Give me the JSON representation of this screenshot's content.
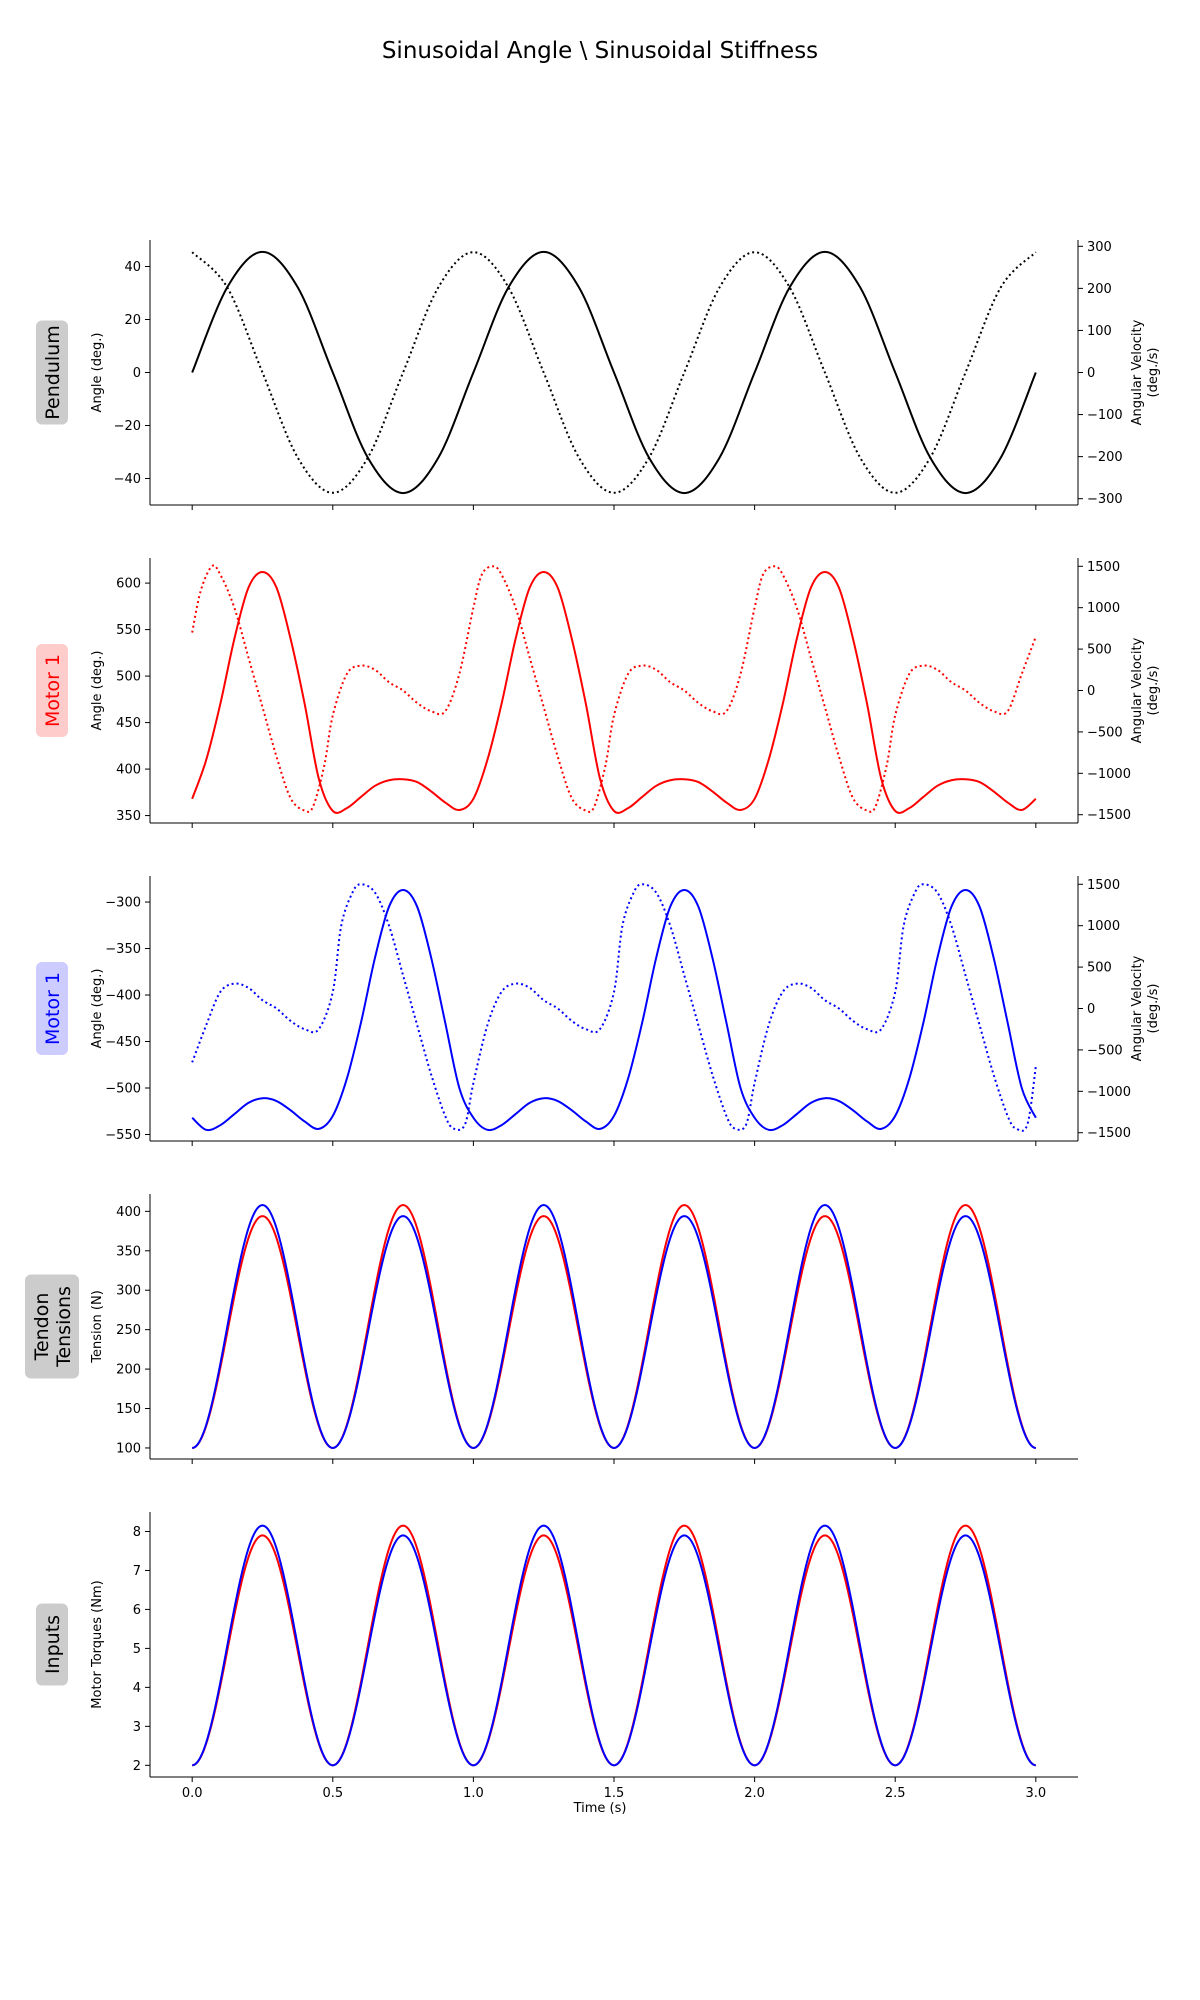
{
  "figure": {
    "title": "Sinusoidal Angle \\ Sinusoidal Stiffness",
    "xlabel": "Time (s)"
  },
  "chart_data": [
    {
      "type": "line",
      "row_label": "Pendulum",
      "label_bg": "#cccccc",
      "label_color": "#000000",
      "ylabel": "Angle (deg.)",
      "ylabel_right": [
        "Angular Velocity",
        "(deg./s)"
      ],
      "ylim": [
        -50,
        50
      ],
      "yticks": [
        -40,
        -20,
        0,
        20,
        40
      ],
      "y2lim": [
        -315,
        315
      ],
      "y2ticks": [
        -300,
        -200,
        -100,
        0,
        100,
        200,
        300
      ],
      "xlim": [
        -0.15,
        3.15
      ],
      "xticks": [
        0.0,
        0.5,
        1.0,
        1.5,
        2.0,
        2.5,
        3.0
      ],
      "series": [
        {
          "color": "#000000",
          "dash": "solid",
          "axis": "left",
          "x": [
            0.0,
            0.125,
            0.25,
            0.375,
            0.5,
            0.625,
            0.75,
            0.875,
            1.0,
            1.125,
            1.25,
            1.375,
            1.5,
            1.625,
            1.75,
            1.875,
            2.0,
            2.125,
            2.25,
            2.375,
            2.5,
            2.625,
            2.75,
            2.875,
            3.0
          ],
          "y": [
            0,
            32.2,
            45.5,
            32.2,
            0,
            -32.2,
            -45.5,
            -32.2,
            0,
            32.2,
            45.5,
            32.2,
            0,
            -32.2,
            -45.5,
            -32.2,
            0,
            32.2,
            45.5,
            32.2,
            0,
            -32.2,
            -45.5,
            -32.2,
            0
          ]
        },
        {
          "color": "#000000",
          "dash": "dotted",
          "axis": "right",
          "x": [
            0.0,
            0.125,
            0.25,
            0.375,
            0.5,
            0.625,
            0.75,
            0.875,
            1.0,
            1.125,
            1.25,
            1.375,
            1.5,
            1.625,
            1.75,
            1.875,
            2.0,
            2.125,
            2.25,
            2.375,
            2.5,
            2.625,
            2.75,
            2.875,
            3.0
          ],
          "y": [
            286,
            202,
            0,
            -202,
            -286,
            -202,
            0,
            202,
            286,
            202,
            0,
            -202,
            -286,
            -202,
            0,
            202,
            286,
            202,
            0,
            -202,
            -286,
            -202,
            0,
            202,
            286
          ]
        }
      ]
    },
    {
      "type": "line",
      "row_label": "Motor 1",
      "label_bg": "#ffcccc",
      "label_color": "#ff0000",
      "ylabel": "Angle (deg.)",
      "ylabel_right": [
        "Angular Velocity",
        "(deg./s)"
      ],
      "ylim": [
        342,
        627
      ],
      "yticks": [
        350,
        400,
        450,
        500,
        550,
        600
      ],
      "y2lim": [
        -1600,
        1600
      ],
      "y2ticks": [
        -1500,
        -1000,
        -500,
        0,
        500,
        1000,
        1500
      ],
      "xlim": [
        -0.15,
        3.15
      ],
      "xticks": [
        0.0,
        0.5,
        1.0,
        1.5,
        2.0,
        2.5,
        3.0
      ],
      "series": [
        {
          "color": "#ff0000",
          "dash": "solid",
          "axis": "left",
          "x": [
            0.0,
            0.05,
            0.1,
            0.15,
            0.2,
            0.25,
            0.3,
            0.35,
            0.4,
            0.45,
            0.5,
            0.55,
            0.6,
            0.65,
            0.7,
            0.75,
            0.8,
            0.85,
            0.9,
            0.95,
            1.0,
            1.05,
            1.1,
            1.15,
            1.2,
            1.25,
            1.3,
            1.35,
            1.4,
            1.45,
            1.5,
            1.55,
            1.6,
            1.65,
            1.7,
            1.75,
            1.8,
            1.85,
            1.9,
            1.95,
            2.0,
            2.05,
            2.1,
            2.15,
            2.2,
            2.25,
            2.3,
            2.35,
            2.4,
            2.45,
            2.5,
            2.55,
            2.6,
            2.65,
            2.7,
            2.75,
            2.8,
            2.85,
            2.9,
            2.95,
            3.0
          ],
          "y": [
            368,
            410,
            470,
            540,
            595,
            612,
            595,
            540,
            470,
            390,
            355,
            358,
            370,
            382,
            388,
            389,
            386,
            376,
            364,
            356,
            368,
            410,
            470,
            540,
            595,
            612,
            595,
            540,
            470,
            390,
            355,
            358,
            370,
            382,
            388,
            389,
            386,
            376,
            364,
            356,
            368,
            410,
            470,
            540,
            595,
            612,
            595,
            540,
            470,
            390,
            355,
            358,
            370,
            382,
            388,
            389,
            386,
            376,
            364,
            356,
            368
          ]
        },
        {
          "color": "#ff0000",
          "dash": "dotted",
          "axis": "right",
          "x": [
            0.0,
            0.03,
            0.07,
            0.1,
            0.15,
            0.2,
            0.25,
            0.3,
            0.35,
            0.4,
            0.43,
            0.47,
            0.5,
            0.55,
            0.6,
            0.65,
            0.7,
            0.75,
            0.8,
            0.85,
            0.9,
            0.95,
            1.0,
            1.03,
            1.07,
            1.1,
            1.15,
            1.2,
            1.25,
            1.3,
            1.35,
            1.4,
            1.43,
            1.47,
            1.5,
            1.55,
            1.6,
            1.65,
            1.7,
            1.75,
            1.8,
            1.85,
            1.9,
            1.95,
            2.0,
            2.03,
            2.07,
            2.1,
            2.15,
            2.2,
            2.25,
            2.3,
            2.35,
            2.4,
            2.43,
            2.47,
            2.5,
            2.55,
            2.6,
            2.65,
            2.7,
            2.75,
            2.8,
            2.85,
            2.9,
            2.95,
            3.0
          ],
          "y": [
            700,
            1200,
            1500,
            1400,
            1000,
            400,
            -200,
            -800,
            -1300,
            -1450,
            -1400,
            -900,
            -300,
            200,
            300,
            250,
            100,
            0,
            -150,
            -250,
            -250,
            200,
            1000,
            1400,
            1500,
            1400,
            1000,
            400,
            -200,
            -800,
            -1300,
            -1450,
            -1400,
            -900,
            -300,
            200,
            300,
            250,
            100,
            0,
            -150,
            -250,
            -250,
            200,
            1000,
            1400,
            1500,
            1400,
            1000,
            400,
            -200,
            -800,
            -1300,
            -1450,
            -1400,
            -900,
            -300,
            200,
            300,
            250,
            100,
            0,
            -150,
            -250,
            -250,
            200,
            650
          ]
        }
      ]
    },
    {
      "type": "line",
      "row_label": "Motor 1",
      "label_bg": "#ccccff",
      "label_color": "#0000ff",
      "ylabel": "Angle (deg.)",
      "ylabel_right": [
        "Angular Velocity",
        "(deg./s)"
      ],
      "ylim": [
        -557,
        -272
      ],
      "yticks": [
        -550,
        -500,
        -450,
        -400,
        -350,
        -300
      ],
      "y2lim": [
        -1600,
        1600
      ],
      "y2ticks": [
        -1500,
        -1000,
        -500,
        0,
        500,
        1000,
        1500
      ],
      "xlim": [
        -0.15,
        3.15
      ],
      "xticks": [
        0.0,
        0.5,
        1.0,
        1.5,
        2.0,
        2.5,
        3.0
      ],
      "series": [
        {
          "color": "#0000ff",
          "dash": "solid",
          "axis": "left",
          "x": [
            0.0,
            0.05,
            0.1,
            0.15,
            0.2,
            0.25,
            0.3,
            0.35,
            0.4,
            0.45,
            0.5,
            0.55,
            0.6,
            0.65,
            0.7,
            0.75,
            0.8,
            0.85,
            0.9,
            0.95,
            1.0,
            1.05,
            1.1,
            1.15,
            1.2,
            1.25,
            1.3,
            1.35,
            1.4,
            1.45,
            1.5,
            1.55,
            1.6,
            1.65,
            1.7,
            1.75,
            1.8,
            1.85,
            1.9,
            1.95,
            2.0,
            2.05,
            2.1,
            2.15,
            2.2,
            2.25,
            2.3,
            2.35,
            2.4,
            2.45,
            2.5,
            2.55,
            2.6,
            2.65,
            2.7,
            2.75,
            2.8,
            2.85,
            2.9,
            2.95,
            3.0
          ],
          "y": [
            -532,
            -545,
            -540,
            -528,
            -516,
            -511,
            -514,
            -524,
            -536,
            -544,
            -530,
            -490,
            -430,
            -360,
            -305,
            -287,
            -305,
            -360,
            -430,
            -500,
            -532,
            -545,
            -540,
            -528,
            -516,
            -511,
            -514,
            -524,
            -536,
            -544,
            -530,
            -490,
            -430,
            -360,
            -305,
            -287,
            -305,
            -360,
            -430,
            -500,
            -532,
            -545,
            -540,
            -528,
            -516,
            -511,
            -514,
            -524,
            -536,
            -544,
            -530,
            -490,
            -430,
            -360,
            -305,
            -287,
            -305,
            -360,
            -430,
            -500,
            -532
          ]
        },
        {
          "color": "#0000ff",
          "dash": "dotted",
          "axis": "right",
          "x": [
            0.0,
            0.05,
            0.1,
            0.15,
            0.2,
            0.25,
            0.3,
            0.35,
            0.4,
            0.45,
            0.5,
            0.53,
            0.57,
            0.6,
            0.65,
            0.7,
            0.75,
            0.8,
            0.85,
            0.9,
            0.93,
            0.97,
            1.0,
            1.05,
            1.1,
            1.15,
            1.2,
            1.25,
            1.3,
            1.35,
            1.4,
            1.45,
            1.5,
            1.53,
            1.57,
            1.6,
            1.65,
            1.7,
            1.75,
            1.8,
            1.85,
            1.9,
            1.93,
            1.97,
            2.0,
            2.05,
            2.1,
            2.15,
            2.2,
            2.25,
            2.3,
            2.35,
            2.4,
            2.45,
            2.5,
            2.53,
            2.57,
            2.6,
            2.65,
            2.7,
            2.75,
            2.8,
            2.85,
            2.9,
            2.93,
            2.97,
            3.0
          ],
          "y": [
            -650,
            -200,
            200,
            300,
            250,
            100,
            0,
            -150,
            -250,
            -250,
            200,
            1000,
            1400,
            1500,
            1400,
            1000,
            400,
            -200,
            -800,
            -1300,
            -1450,
            -1400,
            -900,
            -200,
            200,
            300,
            250,
            100,
            0,
            -150,
            -250,
            -250,
            200,
            1000,
            1400,
            1500,
            1400,
            1000,
            400,
            -200,
            -800,
            -1300,
            -1450,
            -1400,
            -900,
            -200,
            200,
            300,
            250,
            100,
            0,
            -150,
            -250,
            -250,
            200,
            1000,
            1400,
            1500,
            1400,
            1000,
            400,
            -200,
            -800,
            -1300,
            -1450,
            -1400,
            -700
          ]
        }
      ]
    },
    {
      "type": "line",
      "row_label": [
        "Tendon",
        "Tensions"
      ],
      "label_bg": "#cccccc",
      "label_color": "#000000",
      "ylabel": "Tension (N)",
      "ylabel_right": [],
      "ylim": [
        86,
        422
      ],
      "yticks": [
        100,
        150,
        200,
        250,
        300,
        350,
        400
      ],
      "xlim": [
        -0.15,
        3.15
      ],
      "xticks": [
        0.0,
        0.5,
        1.0,
        1.5,
        2.0,
        2.5,
        3.0
      ],
      "series": [
        {
          "color": "#ff0000",
          "dash": "solid",
          "axis": "left",
          "kind": "cosine",
          "period": 0.5,
          "base": 100,
          "peaks": [
            394,
            408,
            394,
            408,
            394,
            408
          ]
        },
        {
          "color": "#0000ff",
          "dash": "solid",
          "axis": "left",
          "kind": "cosine",
          "period": 0.5,
          "base": 100,
          "peaks": [
            408,
            394,
            408,
            394,
            408,
            394
          ]
        }
      ]
    },
    {
      "type": "line",
      "row_label": "Inputs",
      "label_bg": "#cccccc",
      "label_color": "#000000",
      "ylabel": "Motor Torques (Nm)",
      "ylabel_right": [],
      "ylim": [
        1.7,
        8.5
      ],
      "yticks": [
        2,
        3,
        4,
        5,
        6,
        7,
        8
      ],
      "xlim": [
        -0.15,
        3.15
      ],
      "xticks": [
        0.0,
        0.5,
        1.0,
        1.5,
        2.0,
        2.5,
        3.0
      ],
      "xticklabels": [
        "0.0",
        "0.5",
        "1.0",
        "1.5",
        "2.0",
        "2.5",
        "3.0"
      ],
      "series": [
        {
          "color": "#ff0000",
          "dash": "solid",
          "axis": "left",
          "kind": "cosine",
          "period": 0.5,
          "base": 2.0,
          "peaks": [
            7.9,
            8.15,
            7.9,
            8.15,
            7.9,
            8.15
          ]
        },
        {
          "color": "#0000ff",
          "dash": "solid",
          "axis": "left",
          "kind": "cosine",
          "period": 0.5,
          "base": 2.0,
          "peaks": [
            8.15,
            7.9,
            8.15,
            7.9,
            8.15,
            7.9
          ]
        }
      ]
    }
  ]
}
